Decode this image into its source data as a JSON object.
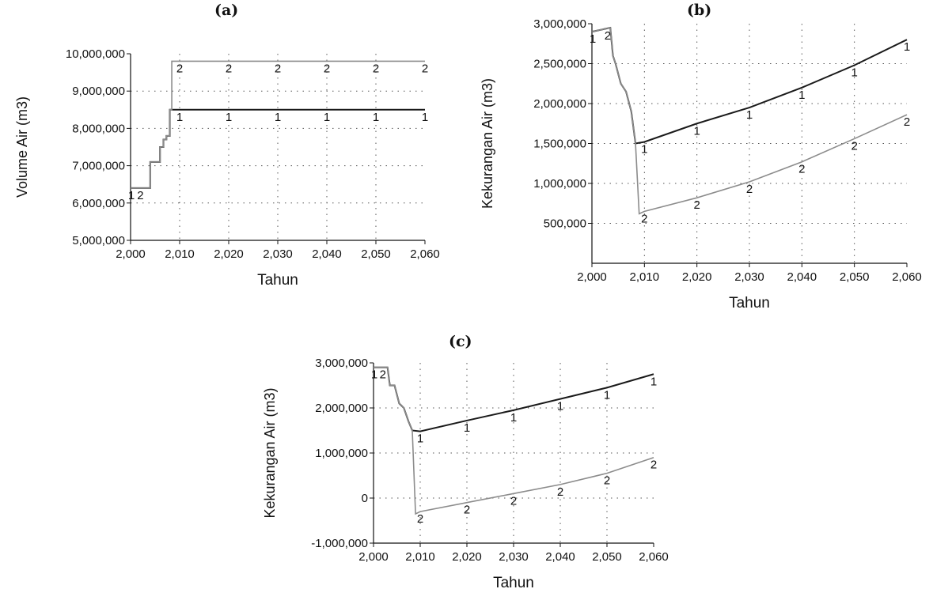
{
  "colors": {
    "series1": "#1a1a1a",
    "series2": "#8c8c8c",
    "grid": "#555555"
  },
  "chart_data": [
    {
      "panel": "(a)",
      "type": "line",
      "xlabel": "Tahun",
      "ylabel": "Volume Air (m3)",
      "xlim": [
        2000,
        2060
      ],
      "ylim": [
        5000000,
        10000000
      ],
      "xticks": [
        2000,
        2010,
        2020,
        2030,
        2040,
        2050,
        2060
      ],
      "xtick_labels": [
        "2,000",
        "2,010",
        "2,020",
        "2,030",
        "2,040",
        "2,050",
        "2,060"
      ],
      "yticks": [
        5000000,
        6000000,
        7000000,
        8000000,
        9000000,
        10000000
      ],
      "ytick_labels": [
        "5,000,000",
        "6,000,000",
        "7,000,000",
        "8,000,000",
        "9,000,000",
        "10,000,000"
      ],
      "grid": true,
      "series": [
        {
          "marker": "1",
          "color": "series1",
          "step": true,
          "x": [
            2000,
            2003,
            2004,
            2005,
            2006,
            2006.7,
            2007.3,
            2008,
            2010,
            2020,
            2030,
            2040,
            2050,
            2060
          ],
          "y": [
            6400000,
            6400000,
            7100000,
            7100000,
            7500000,
            7700000,
            7800000,
            8500000,
            8500000,
            8500000,
            8500000,
            8500000,
            8500000,
            8500000
          ],
          "marker_x": [
            2000,
            2010,
            2020,
            2030,
            2040,
            2050,
            2060
          ]
        },
        {
          "marker": "2",
          "color": "series2",
          "step": true,
          "x": [
            2000,
            2003,
            2004,
            2005,
            2006,
            2006.7,
            2007.3,
            2008,
            2008.4,
            2010,
            2020,
            2030,
            2040,
            2050,
            2060
          ],
          "y": [
            6400000,
            6400000,
            7100000,
            7100000,
            7500000,
            7700000,
            7800000,
            8500000,
            9800000,
            9800000,
            9800000,
            9800000,
            9800000,
            9800000,
            9800000
          ],
          "marker_x": [
            2002,
            2010,
            2020,
            2030,
            2040,
            2050,
            2060
          ]
        }
      ]
    },
    {
      "panel": "(b)",
      "type": "line",
      "xlabel": "Tahun",
      "ylabel": "Kekurangan Air (m3)",
      "xlim": [
        2000,
        2060
      ],
      "ylim": [
        0,
        3000000
      ],
      "xticks": [
        2000,
        2010,
        2020,
        2030,
        2040,
        2050,
        2060
      ],
      "xtick_labels": [
        "2,000",
        "2,010",
        "2,020",
        "2,030",
        "2,040",
        "2,050",
        "2,060"
      ],
      "yticks": [
        500000,
        1000000,
        1500000,
        2000000,
        2500000,
        3000000
      ],
      "ytick_labels": [
        "500,000",
        "1,000,000",
        "1,500,000",
        "2,000,000",
        "2,500,000",
        "3,000,000"
      ],
      "grid": true,
      "series": [
        {
          "marker": "1",
          "color": "series1",
          "x": [
            2000,
            2003.5,
            2004,
            2004.5,
            2005.5,
            2006.5,
            2007.5,
            2008.3,
            2010,
            2020,
            2030,
            2040,
            2050,
            2060
          ],
          "y": [
            2900000,
            2950000,
            2600000,
            2500000,
            2250000,
            2150000,
            1900000,
            1500000,
            1520000,
            1750000,
            1950000,
            2200000,
            2480000,
            2800000
          ],
          "marker_x": [
            2000,
            2010,
            2020,
            2030,
            2040,
            2050,
            2060
          ]
        },
        {
          "marker": "2",
          "color": "series2",
          "x": [
            2000,
            2003.5,
            2004,
            2004.5,
            2005.5,
            2006.5,
            2007.5,
            2008.3,
            2009,
            2010,
            2020,
            2030,
            2040,
            2050,
            2060
          ],
          "y": [
            2900000,
            2950000,
            2600000,
            2500000,
            2250000,
            2150000,
            1900000,
            1500000,
            620000,
            650000,
            820000,
            1020000,
            1270000,
            1560000,
            1860000
          ],
          "marker_x": [
            2003,
            2010,
            2020,
            2030,
            2040,
            2050,
            2060
          ]
        }
      ]
    },
    {
      "panel": "(c)",
      "type": "line",
      "xlabel": "Tahun",
      "ylabel": "Kekurangan Air (m3)",
      "xlim": [
        2000,
        2060
      ],
      "ylim": [
        -1000000,
        3000000
      ],
      "xticks": [
        2000,
        2010,
        2020,
        2030,
        2040,
        2050,
        2060
      ],
      "xtick_labels": [
        "2,000",
        "2,010",
        "2,020",
        "2,030",
        "2,040",
        "2,050",
        "2,060"
      ],
      "yticks": [
        -1000000,
        0,
        1000000,
        2000000,
        3000000
      ],
      "ytick_labels": [
        "-1,000,000",
        "0",
        "1,000,000",
        "2,000,000",
        "3,000,000"
      ],
      "grid": true,
      "series": [
        {
          "marker": "1",
          "color": "series1",
          "x": [
            2000,
            2003,
            2003.5,
            2004.5,
            2005.5,
            2006.5,
            2007.5,
            2008.3,
            2010,
            2020,
            2030,
            2040,
            2050,
            2060
          ],
          "y": [
            2900000,
            2900000,
            2500000,
            2500000,
            2100000,
            2000000,
            1700000,
            1500000,
            1480000,
            1720000,
            1950000,
            2200000,
            2450000,
            2750000
          ],
          "marker_x": [
            2000,
            2010,
            2020,
            2030,
            2040,
            2050,
            2060
          ]
        },
        {
          "marker": "2",
          "color": "series2",
          "x": [
            2000,
            2003,
            2003.5,
            2004.5,
            2005.5,
            2006.5,
            2007.5,
            2008.3,
            2009,
            2010,
            2020,
            2030,
            2040,
            2050,
            2060
          ],
          "y": [
            2900000,
            2900000,
            2500000,
            2500000,
            2100000,
            2000000,
            1700000,
            1500000,
            -350000,
            -300000,
            -100000,
            100000,
            300000,
            550000,
            900000
          ],
          "marker_x": [
            2002,
            2010,
            2020,
            2030,
            2040,
            2050,
            2060
          ]
        }
      ]
    }
  ]
}
